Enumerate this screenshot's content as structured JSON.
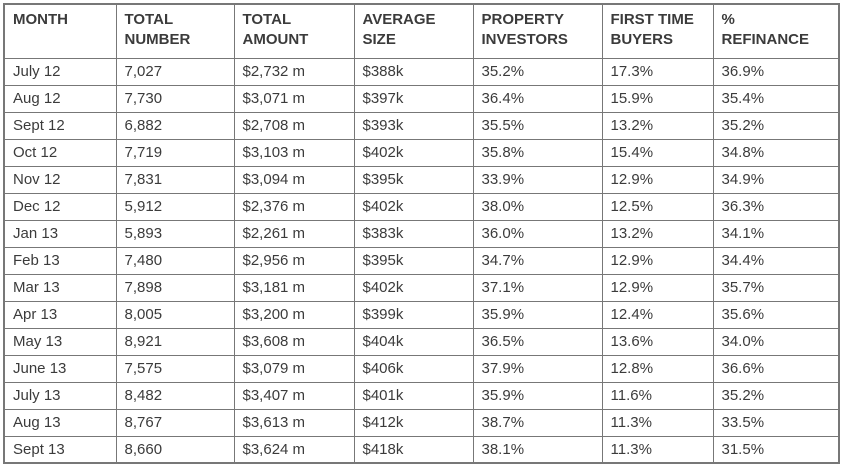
{
  "chart_data": {
    "type": "table",
    "columns": [
      "MONTH",
      "TOTAL NUMBER",
      "TOTAL AMOUNT",
      "AVERAGE SIZE",
      "PROPERTY INVESTORS",
      "FIRST TIME BUYERS",
      "% REFINANCE"
    ],
    "header_lines": [
      "MONTH",
      "TOTAL\nNUMBER",
      "TOTAL\nAMOUNT",
      "AVERAGE\nSIZE",
      "PROPERTY\nINVESTORS",
      "FIRST TIME\nBUYERS",
      "%\nREFINANCE"
    ],
    "rows": [
      [
        "July 12",
        "7,027",
        "$2,732 m",
        "$388k",
        "35.2%",
        "17.3%",
        "36.9%"
      ],
      [
        "Aug 12",
        "7,730",
        "$3,071 m",
        "$397k",
        "36.4%",
        "15.9%",
        "35.4%"
      ],
      [
        "Sept 12",
        "6,882",
        "$2,708 m",
        "$393k",
        "35.5%",
        "13.2%",
        "35.2%"
      ],
      [
        "Oct 12",
        "7,719",
        "$3,103 m",
        "$402k",
        "35.8%",
        "15.4%",
        "34.8%"
      ],
      [
        "Nov 12",
        "7,831",
        "$3,094 m",
        "$395k",
        "33.9%",
        "12.9%",
        "34.9%"
      ],
      [
        "Dec 12",
        "5,912",
        "$2,376 m",
        "$402k",
        "38.0%",
        "12.5%",
        "36.3%"
      ],
      [
        "Jan 13",
        "5,893",
        "$2,261 m",
        "$383k",
        "36.0%",
        "13.2%",
        "34.1%"
      ],
      [
        "Feb 13",
        "7,480",
        "$2,956 m",
        "$395k",
        "34.7%",
        "12.9%",
        "34.4%"
      ],
      [
        "Mar 13",
        "7,898",
        "$3,181 m",
        "$402k",
        "37.1%",
        "12.9%",
        "35.7%"
      ],
      [
        "Apr 13",
        "8,005",
        "$3,200 m",
        "$399k",
        "35.9%",
        "12.4%",
        "35.6%"
      ],
      [
        "May 13",
        "8,921",
        "$3,608 m",
        "$404k",
        "36.5%",
        "13.6%",
        "34.0%"
      ],
      [
        "June 13",
        "7,575",
        "$3,079 m",
        "$406k",
        "37.9%",
        "12.8%",
        "36.6%"
      ],
      [
        "July 13",
        "8,482",
        "$3,407 m",
        "$401k",
        "35.9%",
        "11.6%",
        "35.2%"
      ],
      [
        "Aug 13",
        "8,767",
        "$3,613 m",
        "$412k",
        "38.7%",
        "11.3%",
        "33.5%"
      ],
      [
        "Sept 13",
        "8,660",
        "$3,624 m",
        "$418k",
        "38.1%",
        "11.3%",
        "31.5%"
      ]
    ]
  },
  "style": {
    "border_color": "#777777",
    "text_color": "#3b3b3b",
    "background": "#ffffff"
  }
}
